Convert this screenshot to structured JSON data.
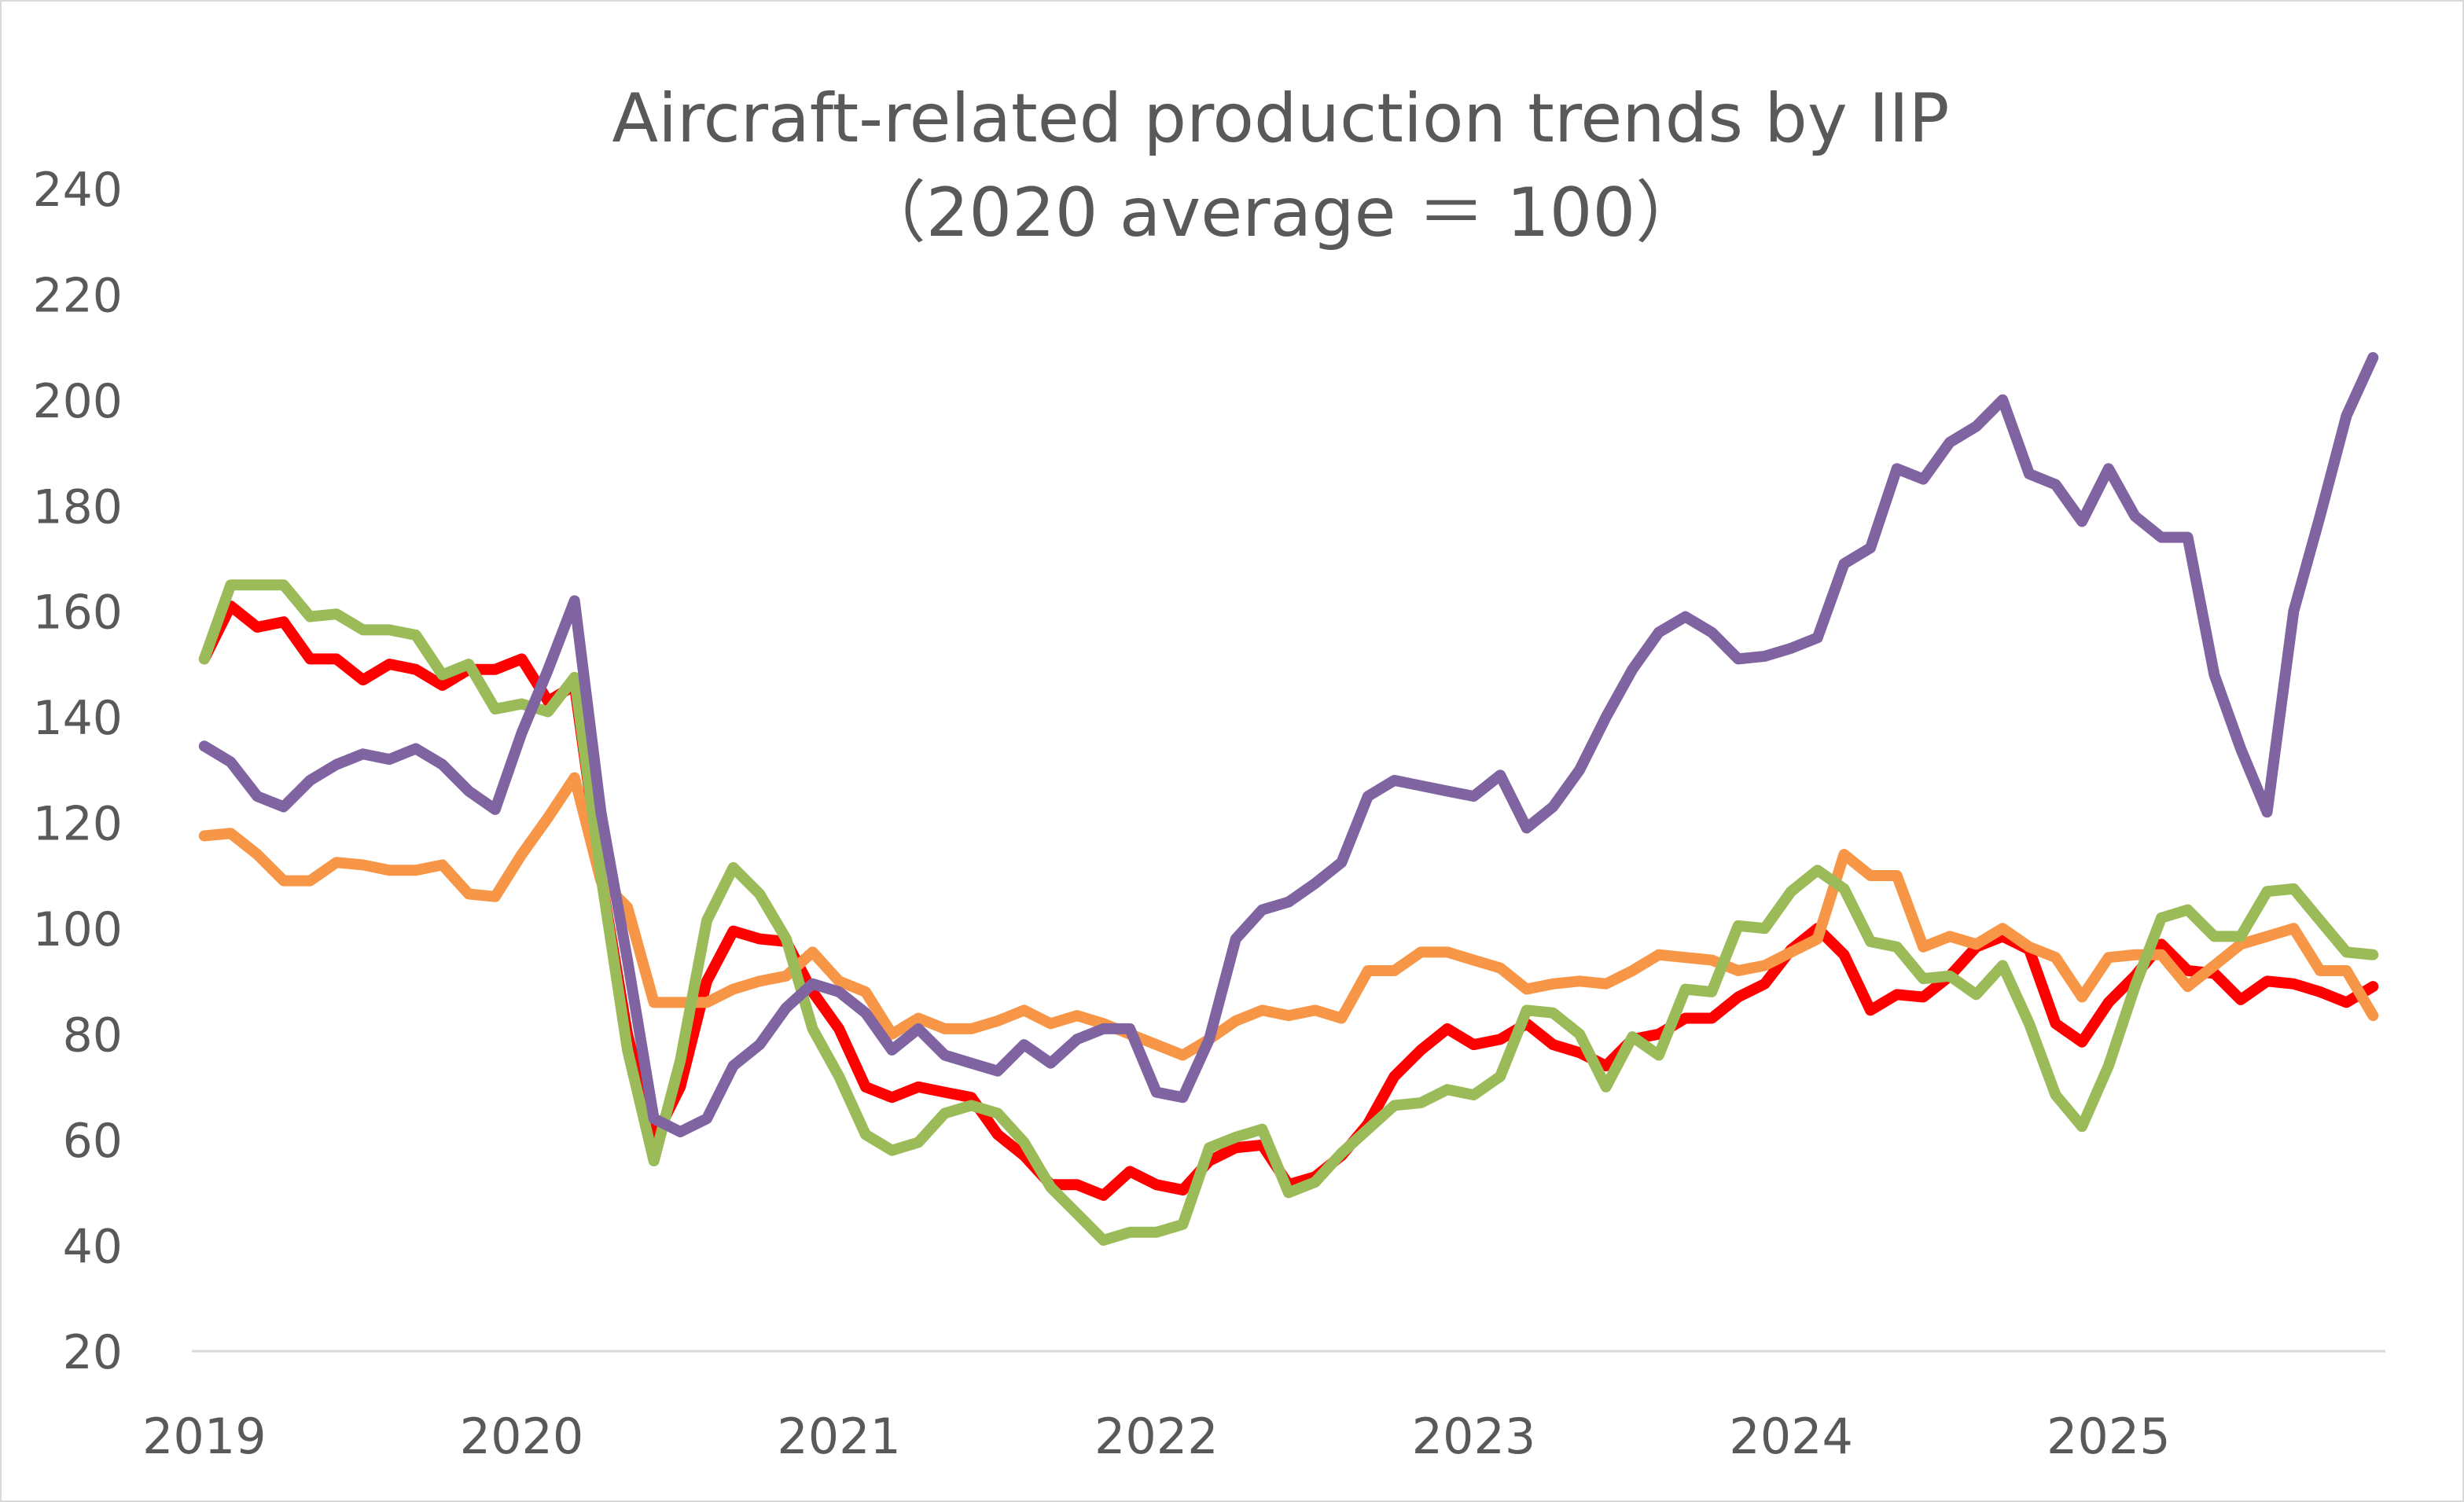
{
  "chart_data": {
    "type": "line",
    "title": "Aircraft-related production trends by IIP",
    "subtitle": "（2020 average ＝ 100）",
    "xlabel": "",
    "ylabel": "",
    "x_start": "2019-01",
    "x_end": "2025-11",
    "x_frequency": "monthly",
    "x_tick_labels": [
      "2019",
      "2020",
      "2021",
      "2022",
      "2023",
      "2024",
      "2025"
    ],
    "ylim": [
      20,
      240
    ],
    "y_ticks": [
      20,
      40,
      60,
      80,
      100,
      120,
      140,
      160,
      180,
      200,
      220,
      240
    ],
    "grid": false,
    "legend": "none",
    "series": [
      {
        "color": "#FF0000",
        "values": [
          151,
          161,
          157,
          158,
          151,
          151,
          147,
          150,
          149,
          146,
          149,
          149,
          151,
          143,
          146,
          110,
          80,
          60,
          70,
          90,
          99.5,
          98,
          97.5,
          88,
          81,
          70,
          68,
          70,
          69,
          68,
          61,
          57,
          51.5,
          51.5,
          49.5,
          54,
          51.5,
          50.5,
          56,
          58.5,
          59,
          51.5,
          53,
          57,
          63,
          72,
          77,
          81,
          78,
          79,
          82,
          78,
          76.5,
          74,
          79,
          80,
          83,
          83,
          87,
          89.5,
          96,
          100,
          95,
          84.5,
          87.5,
          87,
          91,
          96.5,
          98.5,
          96,
          82,
          78.5,
          86,
          91,
          97,
          92,
          91.5,
          86.5,
          90,
          89.5,
          88,
          86,
          89
        ]
      },
      {
        "color": "#F79646",
        "values": [
          117.5,
          118,
          114,
          109,
          109,
          112.5,
          112,
          111,
          111,
          112,
          106.5,
          106,
          114,
          121,
          128.5,
          109,
          104,
          86,
          86,
          86,
          88.5,
          90,
          91,
          95.5,
          90,
          88,
          80,
          83,
          81,
          81,
          82.5,
          84.5,
          82,
          83.5,
          82,
          80,
          78,
          76,
          79,
          82.5,
          84.5,
          83.5,
          84.5,
          83,
          92,
          92,
          95.5,
          95.5,
          94,
          92.5,
          88.5,
          89.5,
          90,
          89.5,
          92,
          95,
          94.5,
          94,
          92,
          93,
          95.5,
          98,
          114,
          110,
          110,
          96.5,
          98.5,
          97,
          100,
          96.5,
          94.5,
          87,
          94.5,
          95,
          95,
          89,
          93,
          97,
          98.5,
          100,
          92,
          92,
          83.5
        ]
      },
      {
        "color": "#9BBB59",
        "values": [
          151,
          165,
          165,
          165,
          159,
          159.5,
          156.5,
          156.5,
          155.5,
          148,
          150,
          141.5,
          142.5,
          141,
          147.5,
          110,
          77,
          56,
          75,
          101.5,
          111.5,
          106.5,
          98,
          81,
          72,
          61,
          58,
          59.5,
          65,
          66.5,
          65,
          59.5,
          51,
          46,
          41,
          42.5,
          42.5,
          44,
          58.5,
          60.5,
          62,
          50,
          52,
          57.5,
          62,
          66.5,
          67,
          69.5,
          68.5,
          72,
          84.5,
          84,
          80,
          70,
          79.5,
          76,
          88.5,
          88,
          100.5,
          100,
          107,
          111,
          107.5,
          97.5,
          96.5,
          90.5,
          91,
          87.5,
          93,
          82,
          68.5,
          62.5,
          74,
          89,
          102,
          103.5,
          98.5,
          98.5,
          107,
          107.5,
          101.5,
          95.5,
          95
        ]
      },
      {
        "color": "#8064A2",
        "values": [
          134.5,
          131.5,
          125,
          123,
          128,
          131,
          133,
          132,
          134,
          131,
          126,
          122.5,
          137,
          149,
          162,
          122,
          94,
          64,
          61.5,
          64,
          74,
          78,
          85,
          89.5,
          88,
          84,
          77,
          81,
          76,
          74.5,
          73,
          78,
          74.5,
          79,
          81,
          81,
          69,
          68,
          79,
          98,
          103.5,
          105,
          108.5,
          112.5,
          125,
          128,
          127,
          126,
          125,
          129,
          119,
          123,
          130,
          140,
          149,
          156,
          159,
          156,
          151,
          151.5,
          153,
          155,
          169,
          172,
          187,
          185,
          192,
          195,
          200,
          186,
          184,
          177,
          187,
          178,
          174,
          174,
          148,
          134,
          122,
          160,
          178,
          197,
          208
        ]
      }
    ]
  }
}
